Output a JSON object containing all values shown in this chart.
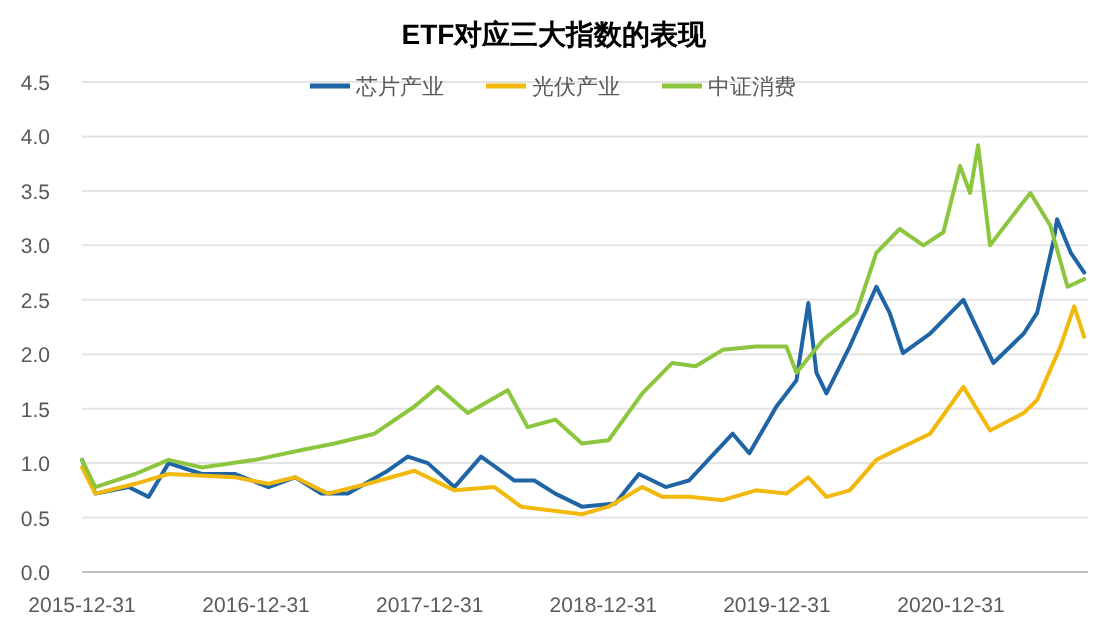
{
  "chart_data": {
    "type": "line",
    "title": "ETF对应三大指数的表现",
    "xlim": [
      "2015-12-31",
      "2021-10-15"
    ],
    "xticks": [
      "2015-12-31",
      "2016-12-31",
      "2017-12-31",
      "2018-12-31",
      "2019-12-31",
      "2020-12-31"
    ],
    "ylim": [
      0,
      4.5
    ],
    "yticks": [
      {
        "value": 0,
        "label": "0.0"
      },
      {
        "value": 0.5,
        "label": "0.5"
      },
      {
        "value": 1,
        "label": "1.0"
      },
      {
        "value": 1.5,
        "label": "1.5"
      },
      {
        "value": 2,
        "label": "2.0"
      },
      {
        "value": 2.5,
        "label": "2.5"
      },
      {
        "value": 3,
        "label": "3.0"
      },
      {
        "value": 3.5,
        "label": "3.5"
      },
      {
        "value": 4,
        "label": "4.0"
      },
      {
        "value": 4.5,
        "label": "4.5"
      }
    ],
    "grid": "y",
    "legend": "top",
    "line_style": "solid",
    "marker": "none",
    "series": [
      {
        "name": "芯片产业",
        "color": "#1f65a6",
        "x": [
          "2015-12-31",
          "2016-01-28",
          "2016-04-07",
          "2016-05-19",
          "2016-06-30",
          "2016-09-08",
          "2016-11-17",
          "2017-01-26",
          "2017-03-23",
          "2017-05-17",
          "2017-07-12",
          "2017-10-04",
          "2017-11-15",
          "2017-12-27",
          "2018-02-21",
          "2018-04-18",
          "2018-06-27",
          "2018-08-08",
          "2018-09-21",
          "2018-11-16",
          "2019-01-25",
          "2019-03-16",
          "2019-05-11",
          "2019-06-29",
          "2019-09-29",
          "2019-11-03",
          "2019-12-30",
          "2020-02-10",
          "2020-03-06",
          "2020-03-23",
          "2020-04-13",
          "2020-06-01",
          "2020-07-27",
          "2020-08-24",
          "2020-09-21",
          "2020-11-17",
          "2021-01-26",
          "2021-03-30",
          "2021-06-02",
          "2021-06-30",
          "2021-08-04",
          "2021-08-11",
          "2021-09-09",
          "2021-10-07"
        ],
        "values": [
          1.03,
          0.72,
          0.78,
          0.69,
          1.0,
          0.9,
          0.9,
          0.78,
          0.87,
          0.72,
          0.72,
          0.93,
          1.06,
          1.0,
          0.78,
          1.06,
          0.84,
          0.84,
          0.72,
          0.6,
          0.63,
          0.9,
          0.78,
          0.84,
          1.27,
          1.09,
          1.52,
          1.76,
          2.47,
          1.83,
          1.64,
          2.07,
          2.62,
          2.38,
          2.01,
          2.19,
          2.5,
          1.92,
          2.19,
          2.38,
          3.05,
          3.24,
          2.93,
          2.75
        ]
      },
      {
        "name": "光伏产业",
        "color": "#f2b90c",
        "x": [
          "2015-12-31",
          "2016-01-28",
          "2016-04-21",
          "2016-06-30",
          "2016-11-17",
          "2017-01-26",
          "2017-03-23",
          "2017-05-31",
          "2017-08-23",
          "2017-11-29",
          "2018-02-21",
          "2018-05-16",
          "2018-07-11",
          "2018-09-05",
          "2018-11-16",
          "2019-01-11",
          "2019-03-23",
          "2019-05-04",
          "2019-06-29",
          "2019-09-08",
          "2019-11-17",
          "2020-01-20",
          "2020-03-06",
          "2020-04-13",
          "2020-06-01",
          "2020-07-27",
          "2020-09-21",
          "2020-11-17",
          "2021-01-26",
          "2021-03-23",
          "2021-06-02",
          "2021-06-30",
          "2021-08-18",
          "2021-09-16",
          "2021-10-07"
        ],
        "values": [
          0.96,
          0.72,
          0.81,
          0.9,
          0.87,
          0.81,
          0.87,
          0.72,
          0.81,
          0.93,
          0.75,
          0.78,
          0.6,
          0.57,
          0.53,
          0.6,
          0.78,
          0.69,
          0.69,
          0.66,
          0.75,
          0.72,
          0.87,
          0.69,
          0.75,
          1.03,
          1.15,
          1.27,
          1.7,
          1.3,
          1.46,
          1.58,
          2.07,
          2.44,
          2.16
        ]
      },
      {
        "name": "中证消费",
        "color": "#8cc63f",
        "x": [
          "2015-12-31",
          "2016-01-28",
          "2016-04-21",
          "2016-06-30",
          "2016-09-08",
          "2016-12-29",
          "2017-04-06",
          "2017-06-14",
          "2017-09-06",
          "2017-11-29",
          "2018-01-17",
          "2018-03-21",
          "2018-06-13",
          "2018-07-25",
          "2018-09-21",
          "2018-11-16",
          "2019-01-11",
          "2019-03-23",
          "2019-05-25",
          "2019-07-13",
          "2019-09-08",
          "2019-11-17",
          "2020-01-20",
          "2020-02-10",
          "2020-04-06",
          "2020-06-15",
          "2020-07-27",
          "2020-09-14",
          "2020-11-03",
          "2020-12-15",
          "2021-01-19",
          "2021-02-09",
          "2021-02-26",
          "2021-03-23",
          "2021-05-25",
          "2021-06-16",
          "2021-07-28",
          "2021-09-02",
          "2021-10-07"
        ],
        "values": [
          1.03,
          0.78,
          0.9,
          1.03,
          0.96,
          1.03,
          1.12,
          1.18,
          1.27,
          1.52,
          1.7,
          1.46,
          1.67,
          1.33,
          1.4,
          1.18,
          1.21,
          1.64,
          1.92,
          1.89,
          2.04,
          2.07,
          2.07,
          1.83,
          2.13,
          2.38,
          2.93,
          3.15,
          3.0,
          3.12,
          3.73,
          3.48,
          3.92,
          3.0,
          3.36,
          3.48,
          3.18,
          2.62,
          2.69
        ]
      }
    ]
  }
}
